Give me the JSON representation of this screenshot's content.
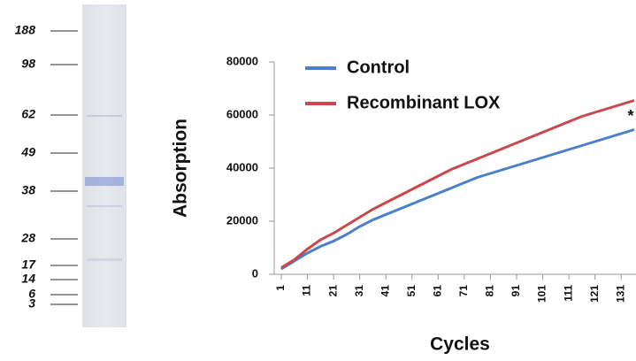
{
  "gel": {
    "markers": [
      "188",
      "98",
      "62",
      "49",
      "38",
      "28",
      "17",
      "14",
      "6",
      "3"
    ]
  },
  "chart_data": {
    "type": "line",
    "y_label": "Absorption",
    "x_label": "Cycles",
    "annotation": "*",
    "x": [
      1,
      6,
      11,
      16,
      21,
      26,
      31,
      36,
      41,
      46,
      51,
      56,
      61,
      66,
      71,
      76,
      81,
      86,
      91,
      96,
      101,
      106,
      111,
      116,
      121,
      126,
      131,
      136
    ],
    "series": [
      {
        "name": "Control",
        "color": "#4a7fcb",
        "values": [
          2000,
          5000,
          8000,
          10500,
          12500,
          15000,
          18000,
          20500,
          22500,
          24500,
          26500,
          28500,
          30500,
          32500,
          34500,
          36500,
          38000,
          39500,
          41000,
          42500,
          44000,
          45500,
          47000,
          48500,
          50000,
          51500,
          53000,
          54500
        ]
      },
      {
        "name": "Recombinant LOX",
        "color": "#c9484c",
        "values": [
          2500,
          5500,
          9500,
          13000,
          15500,
          18500,
          21500,
          24500,
          27000,
          29500,
          32000,
          34500,
          37000,
          39500,
          41500,
          43500,
          45500,
          47500,
          49500,
          51500,
          53500,
          55500,
          57500,
          59500,
          61000,
          62500,
          64000,
          65500
        ]
      }
    ],
    "xlim": [
      1,
      136
    ],
    "xticks": [
      1,
      11,
      21,
      31,
      41,
      51,
      61,
      71,
      81,
      91,
      101,
      111,
      121,
      131
    ],
    "ylim": [
      0,
      80000
    ],
    "yticks": [
      0,
      20000,
      40000,
      60000,
      80000
    ],
    "grid": false,
    "legend": "top-left"
  }
}
